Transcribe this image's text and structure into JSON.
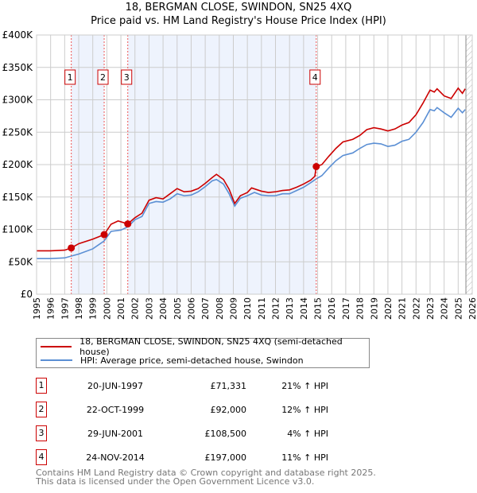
{
  "title": "18, BERGMAN CLOSE, SWINDON, SN25 4XQ",
  "subtitle": "Price paid vs. HM Land Registry's House Price Index (HPI)",
  "colors": {
    "property": "#cc0000",
    "hpi": "#5b8fd4",
    "shade": "#eef3fd"
  },
  "chart_data": {
    "type": "line",
    "xlim": [
      1995,
      2026
    ],
    "ylim": [
      0,
      400000
    ],
    "yticks": [
      {
        "v": 0,
        "l": "£0"
      },
      {
        "v": 50000,
        "l": "£50K"
      },
      {
        "v": 100000,
        "l": "£100K"
      },
      {
        "v": 150000,
        "l": "£150K"
      },
      {
        "v": 200000,
        "l": "£200K"
      },
      {
        "v": 250000,
        "l": "£250K"
      },
      {
        "v": 300000,
        "l": "£300K"
      },
      {
        "v": 350000,
        "l": "£350K"
      },
      {
        "v": 400000,
        "l": "£400K"
      }
    ],
    "xticks": [
      "1995",
      "1996",
      "1997",
      "1998",
      "1999",
      "2000",
      "2001",
      "2002",
      "2003",
      "2004",
      "2005",
      "2006",
      "2007",
      "2008",
      "2009",
      "2010",
      "2011",
      "2012",
      "2013",
      "2014",
      "2015",
      "2016",
      "2017",
      "2018",
      "2019",
      "2020",
      "2021",
      "2022",
      "2023",
      "2024",
      "2025",
      "2026"
    ],
    "series": [
      {
        "name": "18, BERGMAN CLOSE, SWINDON, SN25 4XQ (semi-detached house)",
        "x": [
          1995,
          1996,
          1997,
          1997.47,
          1998,
          1999,
          1999.81,
          2000.3,
          2000.8,
          2001.49,
          2002,
          2002.5,
          2003,
          2003.5,
          2004,
          2004.5,
          2005,
          2005.5,
          2006,
          2006.5,
          2007,
          2007.5,
          2007.8,
          2008.3,
          2008.7,
          2009.1,
          2009.5,
          2010,
          2010.3,
          2011,
          2011.5,
          2012,
          2012.5,
          2013,
          2013.5,
          2014,
          2014.5,
          2014.8,
          2014.9,
          2015.3,
          2015.8,
          2016.3,
          2016.8,
          2017.5,
          2018,
          2018.5,
          2019,
          2019.5,
          2020,
          2020.5,
          2021,
          2021.5,
          2022,
          2022.5,
          2023,
          2023.3,
          2023.5,
          2024,
          2024.5,
          2025,
          2025.3,
          2025.5
        ],
        "y": [
          67000,
          67000,
          68000,
          71331,
          78000,
          85000,
          92000,
          108000,
          113000,
          108500,
          118000,
          125000,
          145000,
          149000,
          147000,
          155000,
          163000,
          158000,
          159000,
          163000,
          171000,
          180000,
          185000,
          177000,
          162000,
          140000,
          152000,
          157000,
          164000,
          159000,
          157000,
          158000,
          160000,
          161000,
          165000,
          170000,
          176000,
          182000,
          197000,
          200000,
          213000,
          225000,
          235000,
          239000,
          245000,
          254000,
          257000,
          255000,
          252000,
          255000,
          261000,
          265000,
          277000,
          295000,
          315000,
          312000,
          317000,
          306000,
          302000,
          318000,
          310000,
          317000
        ]
      },
      {
        "name": "HPI: Average price, semi-detached house, Swindon",
        "x": [
          1995,
          1996,
          1997,
          1997.5,
          1998,
          1999,
          1999.8,
          2000.3,
          2001,
          2001.5,
          2002,
          2002.5,
          2003,
          2003.5,
          2004,
          2004.5,
          2005,
          2005.5,
          2006,
          2006.5,
          2007,
          2007.5,
          2007.8,
          2008.3,
          2008.7,
          2009.1,
          2009.5,
          2010,
          2010.5,
          2011,
          2011.5,
          2012,
          2012.5,
          2013,
          2013.5,
          2014,
          2014.5,
          2014.9,
          2015.3,
          2015.8,
          2016.3,
          2016.8,
          2017.5,
          2018,
          2018.5,
          2019,
          2019.5,
          2020,
          2020.5,
          2021,
          2021.5,
          2022,
          2022.5,
          2023,
          2023.3,
          2023.5,
          2024,
          2024.5,
          2025,
          2025.3,
          2025.5
        ],
        "y": [
          55000,
          55000,
          56000,
          59000,
          62000,
          70000,
          82000,
          97000,
          99000,
          104000,
          115000,
          120000,
          140000,
          143000,
          142000,
          147000,
          155000,
          152000,
          153000,
          158000,
          166000,
          175000,
          177000,
          170000,
          155000,
          136000,
          148000,
          152000,
          157000,
          153000,
          152000,
          152000,
          155000,
          155000,
          160000,
          165000,
          172000,
          178000,
          183000,
          195000,
          206000,
          214000,
          218000,
          225000,
          231000,
          233000,
          232000,
          228000,
          230000,
          236000,
          239000,
          250000,
          265000,
          285000,
          283000,
          288000,
          280000,
          273000,
          287000,
          280000,
          285000
        ]
      }
    ],
    "sales": [
      {
        "label": "1",
        "x": 1997.47,
        "y": 71331
      },
      {
        "label": "2",
        "x": 1999.81,
        "y": 92000
      },
      {
        "label": "3",
        "x": 2001.49,
        "y": 108500
      },
      {
        "label": "4",
        "x": 2014.9,
        "y": 197000
      }
    ],
    "shaded": [
      [
        1997.47,
        1999.81
      ],
      [
        2001.49,
        2014.9
      ]
    ],
    "forecast_from": 2025.55
  },
  "legend": {
    "property": "18, BERGMAN CLOSE, SWINDON, SN25 4XQ (semi-detached house)",
    "hpi": "HPI: Average price, semi-detached house, Swindon"
  },
  "transactions": [
    {
      "num": "1",
      "date": "20-JUN-1997",
      "price": "£71,331",
      "hpi": "21% ↑ HPI"
    },
    {
      "num": "2",
      "date": "22-OCT-1999",
      "price": "£92,000",
      "hpi": "12% ↑ HPI"
    },
    {
      "num": "3",
      "date": "29-JUN-2001",
      "price": "£108,500",
      "hpi": "4% ↑ HPI"
    },
    {
      "num": "4",
      "date": "24-NOV-2014",
      "price": "£197,000",
      "hpi": "11% ↑ HPI"
    }
  ],
  "footer": {
    "line1": "Contains HM Land Registry data © Crown copyright and database right 2025.",
    "line2": "This data is licensed under the Open Government Licence v3.0."
  }
}
